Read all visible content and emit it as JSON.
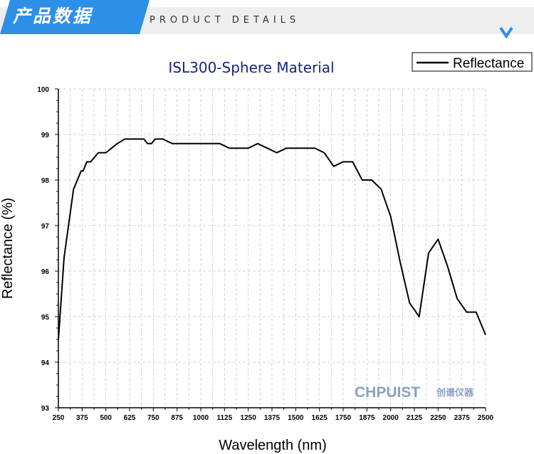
{
  "header": {
    "cn_title": "产品数据",
    "en_title": "PRODUCT DETAILS",
    "accent_color": "#2e8fe6",
    "chevron_icon": "chevron-down-icon"
  },
  "chart_data": {
    "type": "line",
    "title": "ISL300-Sphere Material",
    "xlabel": "Wavelength (nm)",
    "ylabel": "Reflectance (%)",
    "xlim": [
      250,
      2500
    ],
    "ylim": [
      93,
      100
    ],
    "x_ticks": [
      "250",
      "375",
      "500",
      "625",
      "750",
      "875",
      "1000",
      "1125",
      "1250",
      "1375",
      "1500",
      "1625",
      "1750",
      "1875",
      "2000",
      "2125",
      "2250",
      "2375",
      "2500"
    ],
    "y_ticks": [
      "93",
      "94",
      "95",
      "96",
      "97",
      "98",
      "99",
      "100"
    ],
    "grid": true,
    "legend_position": "top-right",
    "line_color": "#000000",
    "title_color": "#1a237e",
    "series": [
      {
        "name": "Reflectance",
        "x": [
          250,
          280,
          330,
          370,
          380,
          400,
          420,
          440,
          460,
          500,
          530,
          560,
          600,
          650,
          700,
          720,
          740,
          760,
          800,
          850,
          900,
          1000,
          1100,
          1150,
          1200,
          1250,
          1300,
          1350,
          1400,
          1450,
          1500,
          1550,
          1600,
          1650,
          1700,
          1750,
          1800,
          1850,
          1900,
          1950,
          2000,
          2050,
          2100,
          2150,
          2200,
          2250,
          2300,
          2350,
          2400,
          2450,
          2500
        ],
        "y": [
          94.5,
          96.3,
          97.8,
          98.2,
          98.2,
          98.4,
          98.4,
          98.5,
          98.6,
          98.6,
          98.7,
          98.8,
          98.9,
          98.9,
          98.9,
          98.8,
          98.8,
          98.9,
          98.9,
          98.8,
          98.8,
          98.8,
          98.8,
          98.7,
          98.7,
          98.7,
          98.8,
          98.7,
          98.6,
          98.7,
          98.7,
          98.7,
          98.7,
          98.6,
          98.3,
          98.4,
          98.4,
          98.0,
          98.0,
          97.8,
          97.2,
          96.2,
          95.3,
          95.0,
          96.4,
          96.7,
          96.1,
          95.4,
          95.1,
          95.1,
          94.6
        ]
      }
    ]
  },
  "watermark": {
    "logo_text": "CHPUIST",
    "logo_cn": "创谱仪器",
    "logo_color": "#8aa1c0"
  }
}
